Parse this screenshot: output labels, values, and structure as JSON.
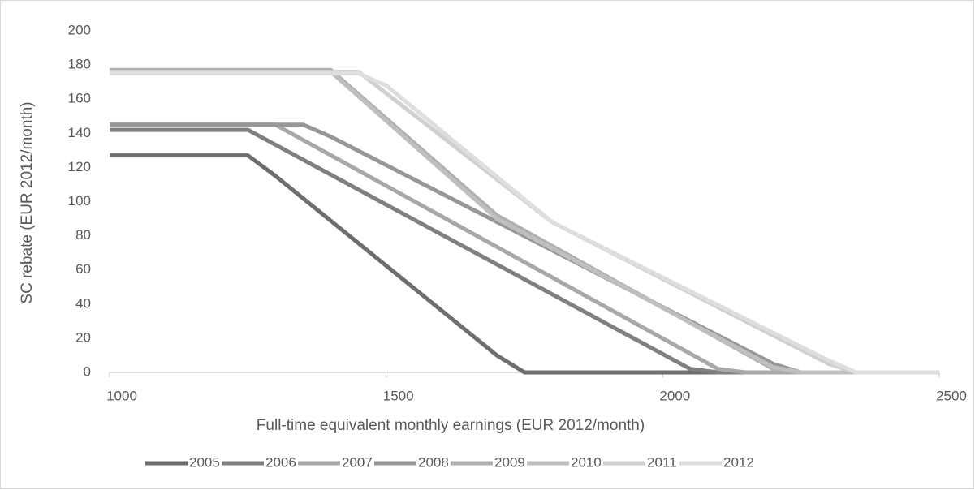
{
  "chart_data": {
    "type": "line",
    "xlabel": "Full-time equivalent monthly earnings (EUR 2012/month)",
    "ylabel": "SC rebate (EUR 2012/month)",
    "xlim": [
      1000,
      2500
    ],
    "xticks": [
      1000,
      1500,
      2000,
      2500
    ],
    "ylim": [
      0,
      200
    ],
    "yticks": [
      0,
      20,
      40,
      60,
      80,
      100,
      120,
      140,
      160,
      180,
      200
    ],
    "grid": false,
    "legend": "bottom",
    "series": [
      {
        "name": "2005",
        "color": "#6e6e6e",
        "x": [
          1000,
          1250,
          1300,
          1700,
          1750,
          2500
        ],
        "values": [
          127,
          127,
          115,
          10,
          0,
          0
        ]
      },
      {
        "name": "2006",
        "color": "#808080",
        "x": [
          1000,
          1250,
          2050,
          2100,
          2500
        ],
        "values": [
          142,
          142,
          2,
          0,
          0
        ]
      },
      {
        "name": "2007",
        "color": "#a8a8a8",
        "x": [
          1000,
          1300,
          2100,
          2150,
          2500
        ],
        "values": [
          145,
          145,
          2,
          0,
          0
        ]
      },
      {
        "name": "2008",
        "color": "#979797",
        "x": [
          1000,
          1350,
          1400,
          2200,
          2250,
          2500
        ],
        "values": [
          145,
          145,
          138,
          5,
          0,
          0
        ]
      },
      {
        "name": "2009",
        "color": "#b0b0b0",
        "x": [
          1000,
          1400,
          1700,
          2200,
          2250,
          2500
        ],
        "values": [
          177,
          177,
          92,
          2,
          0,
          0
        ]
      },
      {
        "name": "2010",
        "color": "#bfbfbf",
        "x": [
          1000,
          1400,
          1700,
          2200,
          2250,
          2500
        ],
        "values": [
          176,
          176,
          90,
          3,
          0,
          0
        ]
      },
      {
        "name": "2011",
        "color": "#d0d0d0",
        "x": [
          1000,
          1450,
          1800,
          2300,
          2350,
          2500
        ],
        "values": [
          176,
          176,
          88,
          5,
          0,
          0
        ]
      },
      {
        "name": "2012",
        "color": "#dedede",
        "x": [
          1000,
          1450,
          1500,
          1800,
          2300,
          2350,
          2500
        ],
        "values": [
          175,
          175,
          168,
          88,
          7,
          0,
          0
        ]
      }
    ]
  }
}
